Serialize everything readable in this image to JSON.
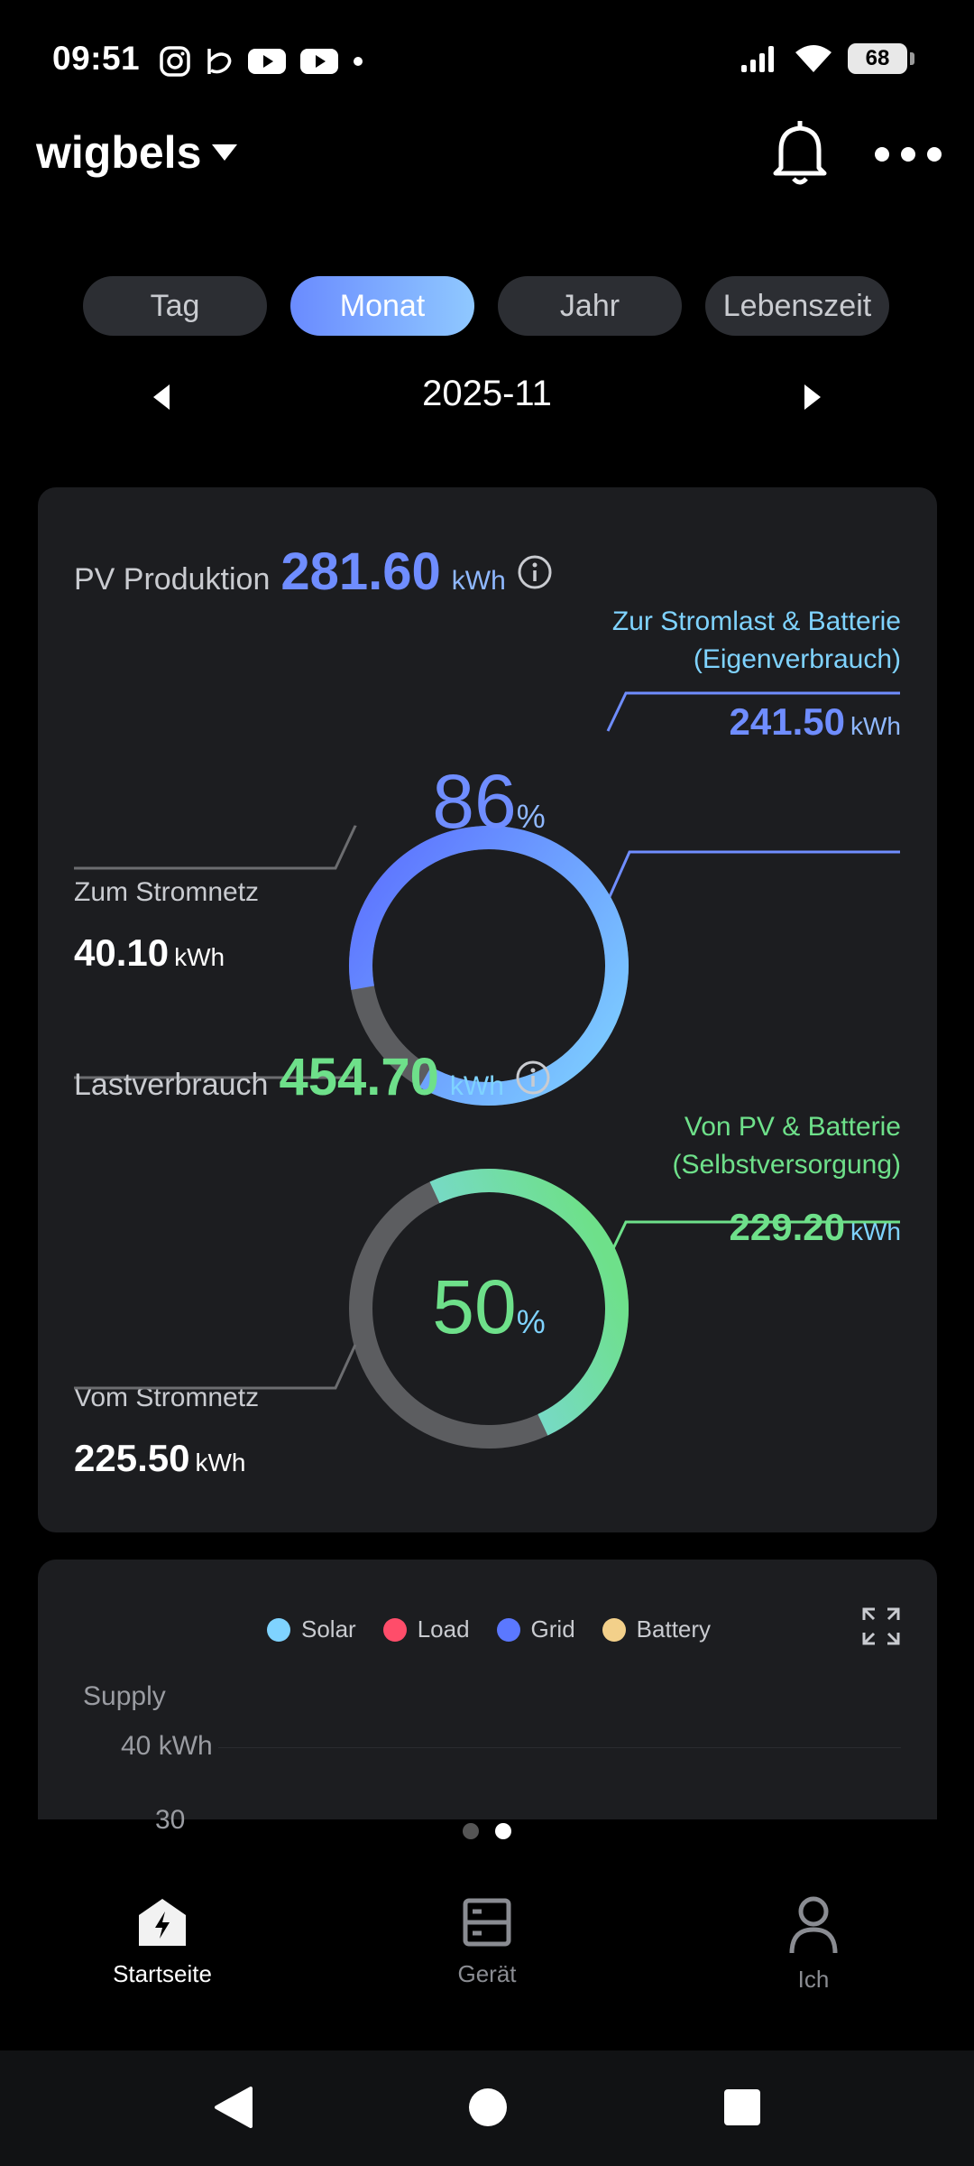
{
  "status_bar": {
    "time": "09:51",
    "battery": "68"
  },
  "header": {
    "plant_name": "wigbels"
  },
  "tabs": [
    {
      "label": "Tag",
      "active": false
    },
    {
      "label": "Monat",
      "active": true
    },
    {
      "label": "Jahr",
      "active": false
    },
    {
      "label": "Lebenszeit",
      "active": false
    }
  ],
  "date_nav": {
    "label": "2025-11"
  },
  "pv": {
    "title": "PV Produktion",
    "value": "281.60",
    "unit": "kWh",
    "self_use_label_1": "Zur Stromlast & Batterie",
    "self_use_label_2": "(Eigenverbrauch)",
    "self_use_value": "241.50",
    "self_use_unit": "kWh",
    "grid_label": "Zum Stromnetz",
    "grid_value": "40.10",
    "grid_unit": "kWh",
    "percent": "86",
    "percent_sign": "%",
    "percent_fraction": 0.86
  },
  "load": {
    "title": "Lastverbrauch",
    "value": "454.70",
    "unit": "kWh",
    "self_supply_label_1": "Von PV & Batterie",
    "self_supply_label_2": "(Selbstversorgung)",
    "self_supply_value": "229.20",
    "self_supply_unit": "kWh",
    "grid_label": "Vom Stromnetz",
    "grid_value": "225.50",
    "grid_unit": "kWh",
    "percent": "50",
    "percent_sign": "%",
    "percent_fraction": 0.5
  },
  "chart": {
    "legend": [
      {
        "label": "Solar",
        "color": "#7fd3ff"
      },
      {
        "label": "Load",
        "color": "#ff4d6a"
      },
      {
        "label": "Grid",
        "color": "#5b78ff"
      },
      {
        "label": "Battery",
        "color": "#f3d08a"
      }
    ],
    "title": "Supply",
    "y_tick_top": "40 kWh",
    "y_tick_partial": "30"
  },
  "bottom_nav": [
    {
      "label": "Startseite",
      "active": true
    },
    {
      "label": "Gerät",
      "active": false
    },
    {
      "label": "Ich",
      "active": false
    }
  ],
  "colors": {
    "pv_accent": "#6f8dff",
    "load_accent": "#6ee08a",
    "ring_bg": "#5c5d60"
  }
}
